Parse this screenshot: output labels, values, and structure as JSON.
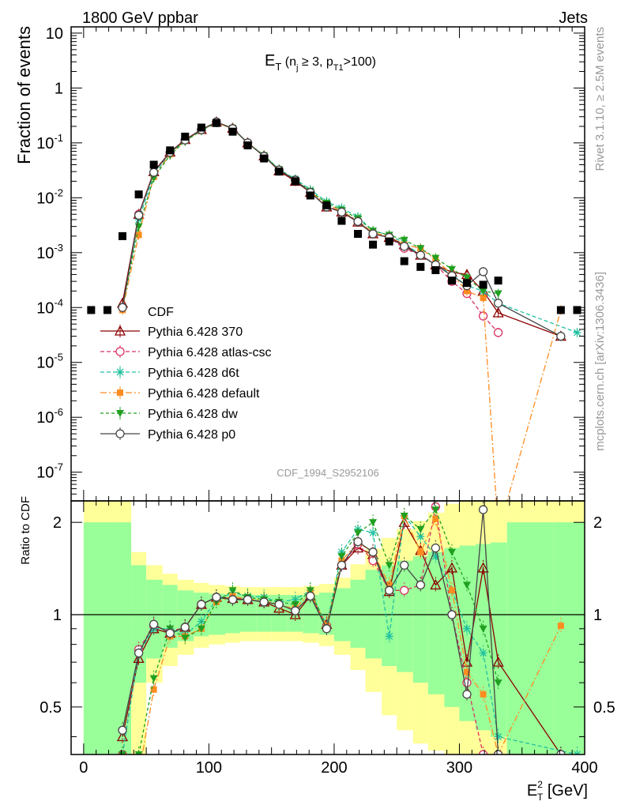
{
  "header": {
    "left": "1800 GeV ppbar",
    "right": "Jets"
  },
  "side_text": {
    "rivet": "Rivet 3.1.10, ≥ 2.5M events",
    "mcplots": "mcplots.cern.ch [arXiv:1306.3436]"
  },
  "analysis_id": "CDF_1994_S2952106",
  "plot_title": {
    "main": "E",
    "sub_t": "T",
    "open": " (n",
    "sub_j": "j",
    "mid": " ≥ 3, p",
    "sub_t1": "T1",
    "close": ">100)"
  },
  "xaxis_label": {
    "main": "E",
    "sup": "2",
    "sub": "T",
    "unit": " [GeV]"
  },
  "yaxis_label": "Fraction of events",
  "ratio_label": "Ratio to CDF",
  "chart_data": {
    "type": "line",
    "x_scale": "linear",
    "y_scale": "log",
    "xlim": [
      -10,
      400
    ],
    "ylim": [
      3e-08,
      13
    ],
    "ratio_ylim": [
      0.35,
      2.35
    ],
    "x_ticks": [
      0,
      100,
      200,
      300,
      400
    ],
    "y_ticks": [
      {
        "v": 1e-07,
        "b": "10",
        "e": "-7"
      },
      {
        "v": 1e-06,
        "b": "10",
        "e": "-6"
      },
      {
        "v": 1e-05,
        "b": "10",
        "e": "-5"
      },
      {
        "v": 0.0001,
        "b": "10",
        "e": "-4"
      },
      {
        "v": 0.001,
        "b": "10",
        "e": "-3"
      },
      {
        "v": 0.01,
        "b": "10",
        "e": "-2"
      },
      {
        "v": 0.1,
        "b": "10",
        "e": "-1"
      },
      {
        "v": 1,
        "b": "1",
        "e": ""
      },
      {
        "v": 10,
        "b": "10",
        "e": ""
      }
    ],
    "ratio_ticks": [
      0.5,
      1,
      2
    ],
    "data": {
      "name": "CDF",
      "x": [
        6,
        19,
        31,
        44,
        56,
        69,
        81,
        94,
        106,
        119,
        131,
        144,
        156,
        169,
        181,
        194,
        206,
        219,
        231,
        244,
        256,
        269,
        281,
        294,
        306,
        319,
        331,
        381,
        394
      ],
      "y": [
        9e-05,
        9e-05,
        0.002,
        0.0115,
        0.04,
        0.073,
        0.13,
        0.19,
        0.23,
        0.16,
        0.09,
        0.052,
        0.03,
        0.02,
        0.011,
        0.0073,
        0.0038,
        0.0022,
        0.0014,
        0.0016,
        0.0007,
        0.00055,
        0.00048,
        0.00031,
        0.00028,
        0.00026,
        0.00031,
        9e-05,
        9e-05
      ]
    },
    "band": {
      "edges": [
        0,
        25,
        38,
        50,
        63,
        75,
        88,
        100,
        113,
        125,
        138,
        150,
        163,
        175,
        188,
        200,
        213,
        225,
        238,
        250,
        263,
        275,
        288,
        300,
        313,
        325,
        338,
        375,
        400
      ],
      "green_lo": [
        0.35,
        0.35,
        0.6,
        0.72,
        0.78,
        0.82,
        0.85,
        0.86,
        0.87,
        0.88,
        0.88,
        0.88,
        0.88,
        0.87,
        0.86,
        0.82,
        0.78,
        0.72,
        0.68,
        0.65,
        0.6,
        0.55,
        0.5,
        0.45,
        0.42,
        0.4,
        0.35,
        0.35
      ],
      "green_hi": [
        2.0,
        2.0,
        1.45,
        1.3,
        1.25,
        1.2,
        1.18,
        1.17,
        1.16,
        1.16,
        1.16,
        1.16,
        1.16,
        1.16,
        1.18,
        1.22,
        1.3,
        1.4,
        1.45,
        1.5,
        1.55,
        1.6,
        1.65,
        1.68,
        1.7,
        1.72,
        2.0,
        2.0
      ],
      "yellow_lo": [
        0.35,
        0.35,
        0.35,
        0.6,
        0.68,
        0.74,
        0.78,
        0.8,
        0.81,
        0.82,
        0.82,
        0.82,
        0.82,
        0.81,
        0.79,
        0.74,
        0.66,
        0.56,
        0.47,
        0.42,
        0.38,
        0.36,
        0.35,
        0.35,
        0.35,
        0.35,
        0.35,
        0.35
      ],
      "yellow_hi": [
        2.35,
        2.35,
        1.6,
        1.45,
        1.36,
        1.3,
        1.27,
        1.25,
        1.24,
        1.23,
        1.23,
        1.23,
        1.23,
        1.24,
        1.26,
        1.32,
        1.46,
        1.64,
        1.78,
        1.9,
        2.02,
        2.15,
        2.3,
        2.35,
        2.35,
        2.35,
        2.35,
        2.35
      ]
    },
    "series": [
      {
        "name": "Pythia 6.428 370",
        "color": "#8b0000",
        "dash": "",
        "marker": "triangle-open",
        "x": [
          31,
          44,
          56,
          69,
          81,
          94,
          106,
          119,
          131,
          144,
          156,
          169,
          181,
          194,
          206,
          219,
          231,
          244,
          256,
          269,
          281,
          294,
          306,
          319,
          331,
          381
        ],
        "y": [
          0.00012,
          0.005,
          0.03,
          0.068,
          0.115,
          0.175,
          0.24,
          0.185,
          0.1,
          0.058,
          0.031,
          0.02,
          0.0125,
          0.0068,
          0.0055,
          0.0036,
          0.0022,
          0.0019,
          0.0014,
          0.0009,
          0.0006,
          0.00044,
          0.0004,
          0.0002,
          8e-05,
          3e-05
        ],
        "ratio": [
          0.4,
          0.72,
          0.9,
          0.87,
          0.91,
          1.08,
          1.14,
          1.13,
          1.12,
          1.1,
          1.05,
          1.0,
          1.15,
          0.93,
          1.45,
          1.65,
          1.57,
          1.19,
          2.0,
          1.62,
          1.25,
          1.42,
          0.7,
          1.42,
          0.7,
          0.35
        ]
      },
      {
        "name": "Pythia 6.428 atlas-csc",
        "color": "#d83060",
        "dash": "5,3",
        "marker": "circle-open",
        "x": [
          31,
          44,
          56,
          69,
          81,
          94,
          106,
          119,
          131,
          144,
          156,
          169,
          181,
          194,
          206,
          219,
          231,
          244,
          256,
          269,
          281,
          294,
          306,
          319,
          331
        ],
        "y": [
          0.0001,
          0.005,
          0.029,
          0.067,
          0.113,
          0.175,
          0.24,
          0.182,
          0.1,
          0.057,
          0.032,
          0.021,
          0.0125,
          0.007,
          0.0055,
          0.0037,
          0.0022,
          0.0019,
          0.0012,
          0.0009,
          0.0006,
          0.0003,
          0.00018,
          7e-05,
          3.5e-05
        ],
        "ratio": [
          0.35,
          0.77,
          0.92,
          0.88,
          0.91,
          1.08,
          1.14,
          1.12,
          1.12,
          1.1,
          1.08,
          1.03,
          1.15,
          0.92,
          1.45,
          1.7,
          1.5,
          1.2,
          1.2,
          1.25,
          2.25,
          1.0,
          0.6,
          0.35,
          0.35
        ]
      },
      {
        "name": "Pythia 6.428 d6t",
        "color": "#20c0a0",
        "dash": "5,3",
        "marker": "star",
        "x": [
          31,
          44,
          56,
          69,
          81,
          94,
          106,
          119,
          131,
          144,
          156,
          169,
          181,
          194,
          206,
          219,
          231,
          244,
          256,
          269,
          281,
          294,
          306,
          319,
          331,
          394
        ],
        "y": [
          0.0001,
          0.004,
          0.026,
          0.063,
          0.11,
          0.17,
          0.235,
          0.185,
          0.1,
          0.059,
          0.033,
          0.022,
          0.014,
          0.0085,
          0.0065,
          0.0045,
          0.0025,
          0.0021,
          0.0015,
          0.0009,
          0.0006,
          0.0004,
          0.00025,
          0.0002,
          0.00012,
          3.5e-05
        ],
        "ratio": [
          0.35,
          0.75,
          0.9,
          0.9,
          0.86,
          0.95,
          1.12,
          1.18,
          1.15,
          1.14,
          1.1,
          1.12,
          1.2,
          0.92,
          1.6,
          1.9,
          1.85,
          0.85,
          2.1,
          1.8,
          1.55,
          1.2,
          0.9,
          0.75,
          0.4,
          0.35
        ]
      },
      {
        "name": "Pythia 6.428 default",
        "color": "#ff8c20",
        "dash": "8,3,2,3",
        "marker": "square",
        "x": [
          31,
          44,
          56,
          69,
          81,
          94,
          106,
          119,
          131,
          144,
          156,
          169,
          181,
          194,
          206,
          219,
          231,
          244,
          256,
          269,
          281,
          294,
          306,
          319,
          331,
          381
        ],
        "y": [
          9e-05,
          0.0021,
          0.024,
          0.062,
          0.11,
          0.17,
          0.235,
          0.18,
          0.1,
          0.058,
          0.032,
          0.021,
          0.013,
          0.0075,
          0.0057,
          0.0038,
          0.0023,
          0.002,
          0.0014,
          0.0012,
          0.00075,
          0.0004,
          0.0002,
          0.00015,
          8e-09,
          9e-05
        ],
        "ratio": [
          0.35,
          0.3,
          0.57,
          0.85,
          0.85,
          0.9,
          1.1,
          1.15,
          1.12,
          1.12,
          1.07,
          1.05,
          1.18,
          0.92,
          1.5,
          1.72,
          1.6,
          1.25,
          2.1,
          1.6,
          2.05,
          1.2,
          0.65,
          0.55,
          0.35,
          0.92
        ]
      },
      {
        "name": "Pythia 6.428 dw",
        "color": "#20a020",
        "dash": "4,3",
        "marker": "triangle-down",
        "x": [
          31,
          44,
          56,
          69,
          81,
          94,
          106,
          119,
          131,
          144,
          156,
          169,
          181,
          194,
          206,
          219,
          231,
          244,
          256,
          269,
          281,
          294,
          306,
          319,
          331
        ],
        "y": [
          0.0001,
          0.003,
          0.023,
          0.06,
          0.107,
          0.168,
          0.235,
          0.185,
          0.1,
          0.059,
          0.033,
          0.021,
          0.0132,
          0.008,
          0.006,
          0.0042,
          0.0025,
          0.0021,
          0.0017,
          0.0012,
          0.0008,
          0.0005,
          0.00035,
          0.0002,
          0.00018
        ],
        "ratio": [
          0.35,
          0.35,
          0.62,
          0.9,
          0.84,
          0.9,
          1.1,
          1.2,
          1.14,
          1.12,
          1.1,
          1.08,
          1.2,
          0.9,
          1.55,
          1.85,
          2.0,
          1.45,
          2.1,
          1.9,
          2.2,
          1.6,
          1.25,
          0.9,
          0.6
        ]
      },
      {
        "name": "Pythia 6.428 p0",
        "color": "#444444",
        "dash": "",
        "marker": "circle-open",
        "x": [
          31,
          44,
          56,
          69,
          81,
          94,
          106,
          119,
          131,
          144,
          156,
          169,
          181,
          194,
          206,
          219,
          231,
          244,
          256,
          269,
          281,
          294,
          306,
          319,
          331,
          381
        ],
        "y": [
          0.0001,
          0.0048,
          0.029,
          0.067,
          0.113,
          0.174,
          0.24,
          0.182,
          0.1,
          0.057,
          0.032,
          0.021,
          0.0125,
          0.0068,
          0.0055,
          0.0037,
          0.0022,
          0.0019,
          0.0013,
          0.0009,
          0.0006,
          0.00038,
          0.00025,
          0.00045,
          0.00012,
          3e-05
        ],
        "ratio": [
          0.42,
          0.75,
          0.93,
          0.87,
          0.91,
          1.08,
          1.14,
          1.12,
          1.12,
          1.1,
          1.08,
          1.03,
          1.15,
          0.9,
          1.45,
          1.73,
          1.6,
          1.2,
          1.45,
          1.25,
          1.65,
          1.0,
          0.55,
          2.2,
          0.35,
          0.35
        ]
      }
    ]
  }
}
